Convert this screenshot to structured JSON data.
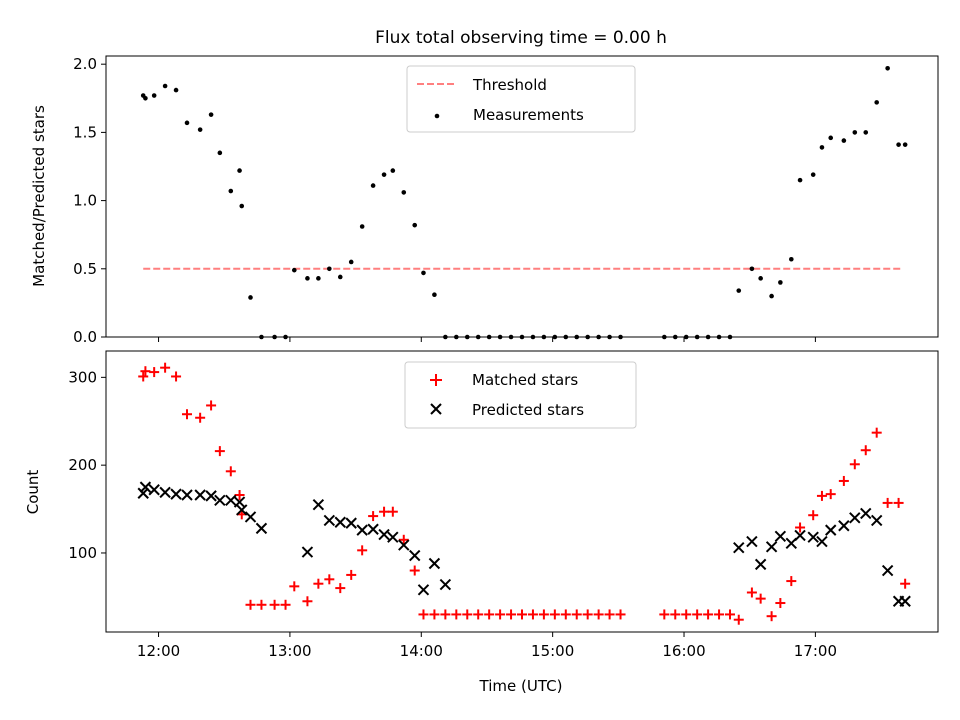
{
  "title": "Flux total observing time = 0.00 h",
  "colors": {
    "threshold": "#ff0000",
    "measurements": "#000000",
    "matched": "#ff0000",
    "predicted": "#000000",
    "axes": "#000000"
  },
  "chart_data": [
    {
      "type": "scatter",
      "ylabel": "Matched/Predicted stars",
      "xlim": [
        "11:36",
        "17:56"
      ],
      "ylim": [
        0,
        2.06
      ],
      "yticks": [
        "0.0",
        "0.5",
        "1.0",
        "1.5",
        "2.0"
      ],
      "legend_position": "upper center",
      "threshold": {
        "name": "Threshold",
        "y": 0.5,
        "x_start": "11:53",
        "x_end": "17:39"
      },
      "series": [
        {
          "name": "Measurements",
          "marker": "dot",
          "x": [
            "11:53",
            "11:54",
            "11:58",
            "12:03",
            "12:08",
            "12:13",
            "12:19",
            "12:24",
            "12:28",
            "12:33",
            "12:37",
            "12:38",
            "12:42",
            "12:47",
            "12:53",
            "12:58",
            "13:02",
            "13:08",
            "13:13",
            "13:18",
            "13:23",
            "13:28",
            "13:33",
            "13:38",
            "13:43",
            "13:47",
            "13:52",
            "13:57",
            "14:01",
            "14:06",
            "14:11",
            "14:16",
            "14:21",
            "14:26",
            "14:31",
            "14:36",
            "14:41",
            "14:46",
            "14:51",
            "14:56",
            "15:01",
            "15:06",
            "15:11",
            "15:16",
            "15:21",
            "15:26",
            "15:31",
            "15:51",
            "15:56",
            "16:01",
            "16:06",
            "16:11",
            "16:16",
            "16:21",
            "16:25",
            "16:31",
            "16:35",
            "16:40",
            "16:44",
            "16:49",
            "16:53",
            "16:59",
            "17:03",
            "17:07",
            "17:13",
            "17:18",
            "17:23",
            "17:28",
            "17:33",
            "17:38",
            "17:41"
          ],
          "y": [
            1.77,
            1.75,
            1.77,
            1.84,
            1.81,
            1.57,
            1.52,
            1.63,
            1.35,
            1.07,
            1.22,
            0.96,
            0.29,
            0.0,
            0.0,
            0.0,
            0.49,
            0.43,
            0.43,
            0.5,
            0.44,
            0.55,
            0.81,
            1.11,
            1.19,
            1.22,
            1.06,
            0.82,
            0.47,
            0.31,
            0.0,
            0.0,
            0.0,
            0.0,
            0.0,
            0.0,
            0.0,
            0.0,
            0.0,
            0.0,
            0.0,
            0.0,
            0.0,
            0.0,
            0.0,
            0.0,
            0.0,
            0.0,
            0.0,
            0.0,
            0.0,
            0.0,
            0.0,
            0.0,
            0.34,
            0.5,
            0.43,
            0.3,
            0.4,
            0.57,
            1.15,
            1.19,
            1.39,
            1.46,
            1.44,
            1.5,
            1.5,
            1.72,
            1.97,
            1.41,
            1.41
          ]
        }
      ]
    },
    {
      "type": "scatter",
      "xlabel": "Time (UTC)",
      "ylabel": "Count",
      "xlim": [
        "11:36",
        "17:56"
      ],
      "ylim": [
        10,
        330
      ],
      "xticks": [
        "12:00",
        "13:00",
        "14:00",
        "15:00",
        "16:00",
        "17:00"
      ],
      "yticks": [
        "100",
        "200",
        "300"
      ],
      "legend_position": "upper center",
      "series": [
        {
          "name": "Matched stars",
          "marker": "plus",
          "x": [
            "11:53",
            "11:54",
            "11:58",
            "12:03",
            "12:08",
            "12:13",
            "12:19",
            "12:24",
            "12:28",
            "12:33",
            "12:37",
            "12:38",
            "12:42",
            "12:47",
            "12:53",
            "12:58",
            "13:02",
            "13:08",
            "13:13",
            "13:18",
            "13:23",
            "13:28",
            "13:33",
            "13:38",
            "13:43",
            "13:47",
            "13:52",
            "13:57",
            "14:01",
            "14:06",
            "14:11",
            "14:16",
            "14:21",
            "14:26",
            "14:31",
            "14:36",
            "14:41",
            "14:46",
            "14:51",
            "14:56",
            "15:01",
            "15:06",
            "15:11",
            "15:16",
            "15:21",
            "15:26",
            "15:31",
            "15:51",
            "15:56",
            "16:01",
            "16:06",
            "16:11",
            "16:16",
            "16:21",
            "16:25",
            "16:31",
            "16:35",
            "16:40",
            "16:44",
            "16:49",
            "16:53",
            "16:59",
            "17:03",
            "17:07",
            "17:13",
            "17:18",
            "17:23",
            "17:28",
            "17:33",
            "17:38",
            "17:41"
          ],
          "y": [
            301,
            307,
            306,
            311,
            301,
            258,
            254,
            268,
            216,
            193,
            166,
            144,
            41,
            41,
            41,
            41,
            62,
            45,
            65,
            70,
            60,
            75,
            103,
            142,
            147,
            147,
            115,
            80,
            30,
            30,
            30,
            30,
            30,
            30,
            30,
            30,
            30,
            30,
            30,
            30,
            30,
            30,
            30,
            30,
            30,
            30,
            30,
            30,
            30,
            30,
            30,
            30,
            30,
            30,
            24,
            55,
            48,
            28,
            43,
            68,
            129,
            143,
            165,
            167,
            182,
            201,
            217,
            237,
            157,
            157,
            65
          ]
        },
        {
          "name": "Predicted stars",
          "marker": "x",
          "x": [
            "11:53",
            "11:54",
            "11:58",
            "12:03",
            "12:08",
            "12:13",
            "12:19",
            "12:24",
            "12:28",
            "12:33",
            "12:37",
            "12:38",
            "12:42",
            "12:47",
            "13:08",
            "13:13",
            "13:18",
            "13:23",
            "13:28",
            "13:33",
            "13:38",
            "13:43",
            "13:47",
            "13:52",
            "13:57",
            "14:01",
            "14:06",
            "14:11",
            "16:25",
            "16:31",
            "16:35",
            "16:40",
            "16:44",
            "16:49",
            "16:53",
            "16:59",
            "17:03",
            "17:07",
            "17:13",
            "17:18",
            "17:23",
            "17:28",
            "17:33",
            "17:38",
            "17:41"
          ],
          "y": [
            168,
            175,
            172,
            169,
            167,
            166,
            166,
            165,
            160,
            160,
            158,
            149,
            141,
            128,
            101,
            155,
            137,
            135,
            134,
            126,
            127,
            121,
            118,
            109,
            97,
            58,
            88,
            64,
            106,
            113,
            87,
            107,
            119,
            111,
            120,
            118,
            113,
            126,
            131,
            140,
            145,
            137,
            80,
            45,
            45
          ]
        }
      ]
    }
  ]
}
